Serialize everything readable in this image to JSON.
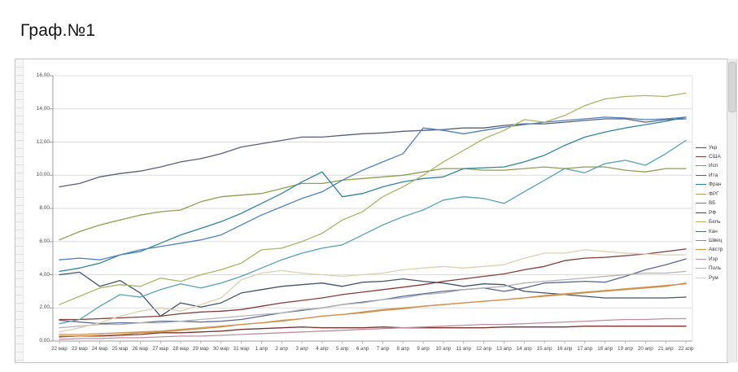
{
  "page": {
    "title": "Граф.№1"
  },
  "chart_data": {
    "type": "line",
    "title": "Граф.№1",
    "xlabel": "",
    "ylabel": "",
    "ylim": [
      0,
      16
    ],
    "y_ticks": [
      "0,00",
      "2,00",
      "4,00",
      "6,00",
      "8,00",
      "10,00",
      "12,00",
      "14,00",
      "16,00"
    ],
    "grid": "horizontal",
    "legend_position": "right",
    "x": [
      "22 мар",
      "23 мар",
      "24 мар",
      "25 мар",
      "26 мар",
      "27 мар",
      "28 мар",
      "29 мар",
      "30 мар",
      "31 мар",
      "1 апр",
      "2 апр",
      "3 апр",
      "4 апр",
      "5 апр",
      "6 апр",
      "7 апр",
      "8 апр",
      "9 апр",
      "10 апр",
      "11 апр",
      "12 апр",
      "13 апр",
      "14 апр",
      "15 апр",
      "16 апр",
      "17 апр",
      "18 апр",
      "19 апр",
      "20 апр",
      "21 апр",
      "22 апр"
    ],
    "series": [
      {
        "name": "Укр",
        "color": "#44546a",
        "values": [
          4.0,
          4.15,
          3.3,
          3.65,
          2.9,
          1.5,
          2.3,
          2.05,
          2.3,
          2.9,
          3.1,
          3.3,
          3.4,
          3.5,
          3.3,
          3.55,
          3.6,
          3.75,
          3.6,
          3.5,
          3.3,
          3.45,
          3.4,
          3.0,
          2.9,
          2.8,
          2.7,
          2.6,
          2.6,
          2.6,
          2.6,
          2.65
        ]
      },
      {
        "name": "США",
        "color": "#843d3d",
        "values": [
          1.3,
          1.3,
          1.35,
          1.4,
          1.45,
          1.5,
          1.65,
          1.75,
          1.8,
          1.9,
          2.1,
          2.3,
          2.45,
          2.6,
          2.8,
          2.95,
          3.1,
          3.25,
          3.4,
          3.6,
          3.75,
          3.9,
          4.05,
          4.3,
          4.5,
          4.85,
          5.0,
          5.05,
          5.15,
          5.25,
          5.4,
          5.55
        ]
      },
      {
        "name": "Исп",
        "color": "#8f9e4f",
        "values": [
          6.1,
          6.6,
          7.0,
          7.3,
          7.6,
          7.8,
          7.9,
          8.4,
          8.7,
          8.8,
          8.9,
          9.2,
          9.5,
          9.5,
          9.7,
          9.8,
          9.9,
          10.0,
          10.2,
          10.4,
          10.4,
          10.3,
          10.3,
          10.4,
          10.5,
          10.4,
          10.5,
          10.5,
          10.3,
          10.2,
          10.4,
          10.4
        ]
      },
      {
        "name": "Ита",
        "color": "#5a5f78",
        "values": [
          9.3,
          9.5,
          9.9,
          10.1,
          10.25,
          10.5,
          10.8,
          11.0,
          11.3,
          11.7,
          11.9,
          12.1,
          12.3,
          12.3,
          12.4,
          12.5,
          12.55,
          12.65,
          12.7,
          12.75,
          12.85,
          12.85,
          13.0,
          13.1,
          13.1,
          13.2,
          13.3,
          13.4,
          13.4,
          13.2,
          13.35,
          13.4
        ]
      },
      {
        "name": "Фран",
        "color": "#31859c",
        "values": [
          4.2,
          4.4,
          4.7,
          5.2,
          5.4,
          5.9,
          6.4,
          6.8,
          7.2,
          7.7,
          8.3,
          8.9,
          9.6,
          10.2,
          8.7,
          8.9,
          9.3,
          9.6,
          9.8,
          9.9,
          10.4,
          10.45,
          10.5,
          10.8,
          11.2,
          11.8,
          12.3,
          12.6,
          12.85,
          13.05,
          13.25,
          13.5
        ]
      },
      {
        "name": "ФРГ",
        "color": "#c0995f",
        "values": [
          0.4,
          0.4,
          0.45,
          0.5,
          0.55,
          0.6,
          0.7,
          0.8,
          0.9,
          1.0,
          1.1,
          1.2,
          1.35,
          1.5,
          1.6,
          1.75,
          1.9,
          2.0,
          2.1,
          2.2,
          2.3,
          2.4,
          2.5,
          2.6,
          2.7,
          2.8,
          2.9,
          3.0,
          3.1,
          3.2,
          3.3,
          3.5
        ]
      },
      {
        "name": "ВБ",
        "color": "#4f81bd",
        "values": [
          4.9,
          5.0,
          4.9,
          5.2,
          5.5,
          5.7,
          5.9,
          6.1,
          6.4,
          7.0,
          7.6,
          8.1,
          8.6,
          9.0,
          9.7,
          10.3,
          10.8,
          11.3,
          12.85,
          12.7,
          12.5,
          12.7,
          12.9,
          13.05,
          13.2,
          13.3,
          13.4,
          13.5,
          13.45,
          13.35,
          13.4,
          13.5
        ]
      },
      {
        "name": "РФ",
        "color": "#77342f",
        "values": [
          0.25,
          0.3,
          0.3,
          0.35,
          0.4,
          0.5,
          0.5,
          0.55,
          0.6,
          0.7,
          0.75,
          0.8,
          0.85,
          0.8,
          0.8,
          0.8,
          0.85,
          0.8,
          0.8,
          0.8,
          0.8,
          0.8,
          0.85,
          0.85,
          0.85,
          0.85,
          0.9,
          0.9,
          0.9,
          0.9,
          0.9,
          0.9
        ]
      },
      {
        "name": "Бель",
        "color": "#aab564",
        "values": [
          2.2,
          2.7,
          3.2,
          3.4,
          3.3,
          3.8,
          3.6,
          4.0,
          4.3,
          4.7,
          5.5,
          5.6,
          6.0,
          6.5,
          7.3,
          7.8,
          8.7,
          9.3,
          10.0,
          10.8,
          11.5,
          12.2,
          12.7,
          13.35,
          13.2,
          13.6,
          14.2,
          14.6,
          14.75,
          14.8,
          14.75,
          14.95
        ]
      },
      {
        "name": "Кан",
        "color": "#5c6693",
        "values": [
          1.25,
          1.15,
          1.05,
          1.1,
          1.1,
          1.2,
          1.2,
          1.15,
          1.2,
          1.3,
          1.5,
          1.7,
          1.85,
          2.0,
          2.2,
          2.35,
          2.5,
          2.7,
          2.85,
          3.0,
          3.1,
          3.2,
          3.0,
          3.2,
          3.5,
          3.55,
          3.6,
          3.55,
          3.9,
          4.3,
          4.6,
          4.95
        ]
      },
      {
        "name": "Швец",
        "color": "#56a2b3",
        "values": [
          1.05,
          1.3,
          2.1,
          2.8,
          2.65,
          3.1,
          3.45,
          3.2,
          3.5,
          3.9,
          4.4,
          4.9,
          5.3,
          5.6,
          5.8,
          6.4,
          7.0,
          7.5,
          7.9,
          8.5,
          8.7,
          8.6,
          8.3,
          9.0,
          9.7,
          10.4,
          10.15,
          10.7,
          10.9,
          10.6,
          11.3,
          12.1
        ]
      },
      {
        "name": "Австр",
        "color": "#d78f46",
        "values": [
          0.3,
          0.3,
          0.35,
          0.4,
          0.5,
          0.55,
          0.65,
          0.75,
          0.85,
          1.0,
          1.1,
          1.25,
          1.35,
          1.5,
          1.6,
          1.7,
          1.85,
          1.95,
          2.1,
          2.2,
          2.3,
          2.4,
          2.5,
          2.6,
          2.75,
          2.85,
          2.95,
          3.05,
          3.15,
          3.25,
          3.35,
          3.45
        ]
      },
      {
        "name": "Изр",
        "color": "#c08da0",
        "values": [
          0.1,
          0.15,
          0.15,
          0.2,
          0.2,
          0.25,
          0.3,
          0.3,
          0.35,
          0.4,
          0.45,
          0.5,
          0.55,
          0.6,
          0.65,
          0.7,
          0.75,
          0.8,
          0.85,
          0.9,
          0.95,
          1.0,
          1.0,
          1.05,
          1.1,
          1.15,
          1.2,
          1.25,
          1.3,
          1.3,
          1.35,
          1.35
        ]
      },
      {
        "name": "Поль",
        "color": "#b3b3b3",
        "values": [
          0.8,
          0.9,
          1.0,
          1.0,
          1.1,
          1.1,
          1.2,
          1.3,
          1.4,
          1.5,
          1.6,
          1.7,
          1.9,
          2.0,
          2.2,
          2.3,
          2.5,
          2.6,
          2.8,
          2.9,
          3.1,
          3.2,
          3.3,
          3.5,
          3.6,
          3.7,
          3.8,
          3.9,
          4.0,
          4.1,
          4.1,
          4.2
        ]
      },
      {
        "name": "Рум",
        "color": "#d8d2b0",
        "values": [
          0.55,
          0.8,
          1.1,
          1.5,
          1.8,
          2.0,
          1.8,
          2.2,
          2.6,
          3.7,
          4.1,
          4.25,
          4.1,
          4.0,
          3.9,
          4.0,
          4.1,
          4.3,
          4.4,
          4.5,
          4.4,
          4.5,
          4.6,
          5.0,
          5.3,
          5.3,
          5.5,
          5.4,
          5.3,
          5.25,
          5.2,
          5.2
        ]
      }
    ]
  }
}
